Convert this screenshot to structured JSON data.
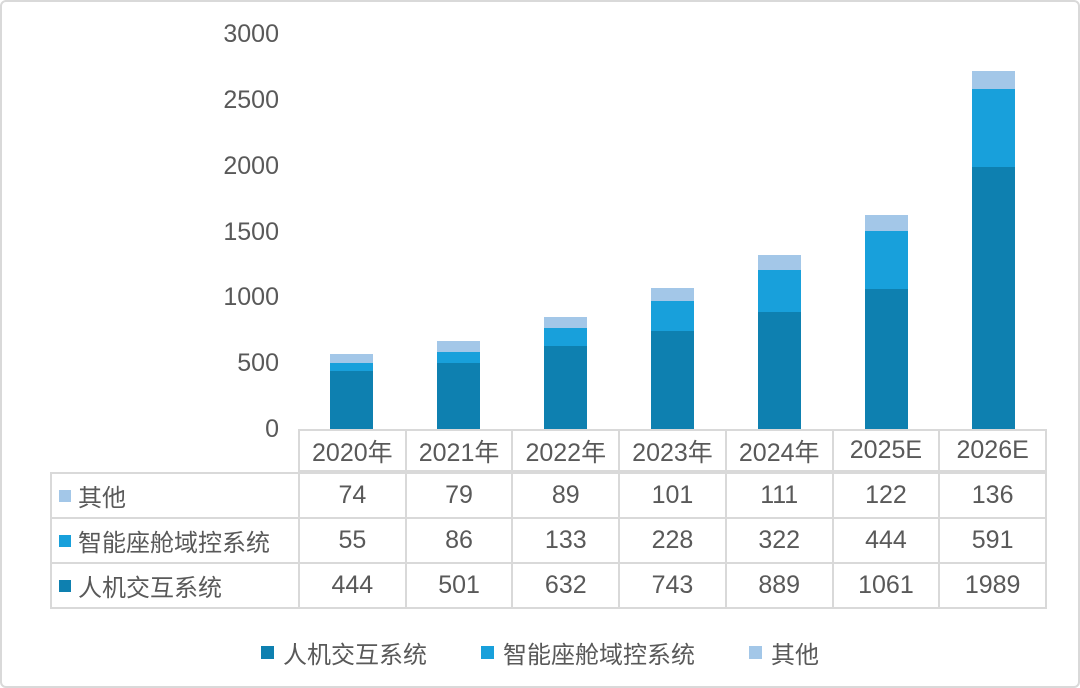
{
  "chart_data": {
    "type": "bar",
    "stacked": true,
    "title": "",
    "xlabel": "",
    "ylabel": "",
    "grid": false,
    "legend_position": "bottom",
    "data_table": true,
    "ylim": [
      0,
      3000
    ],
    "yticks": [
      3000,
      2500,
      2000,
      1500,
      1000,
      500,
      0
    ],
    "categories": [
      "2020年",
      "2021年",
      "2022年",
      "2023年",
      "2024年",
      "2025E",
      "2026E"
    ],
    "series": [
      {
        "name": "人机交互系统",
        "color": "#0E80B0",
        "values": [
          444,
          501,
          632,
          743,
          889,
          1061,
          1989
        ]
      },
      {
        "name": "智能座舱域控系统",
        "color": "#18A0DB",
        "values": [
          55,
          86,
          133,
          228,
          322,
          444,
          591
        ]
      },
      {
        "name": "其他",
        "color": "#A3C7E8",
        "values": [
          74,
          79,
          89,
          101,
          111,
          122,
          136
        ]
      }
    ],
    "table_rows_top_to_bottom": [
      "其他",
      "智能座舱域控系统",
      "人机交互系统"
    ]
  },
  "style": {
    "text_color": "#595959",
    "border_color": "#D9D9D9",
    "background": "#FFFFFF"
  }
}
